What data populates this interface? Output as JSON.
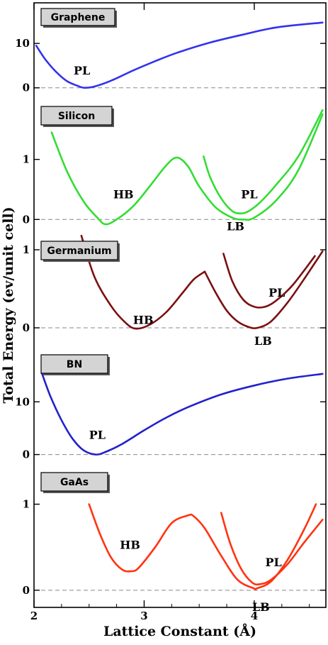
{
  "chart_data": {
    "type": "line",
    "xlabel": "Lattice Constant (Å)",
    "ylabel": "Total Energy (ev/unit cell)",
    "xlim": [
      2.0,
      4.65
    ],
    "xticks": [
      2,
      3,
      4
    ],
    "xtick_labels": [
      "2",
      "3",
      "4"
    ],
    "panels": [
      {
        "material": "Graphene",
        "yticks": [
          0,
          10
        ],
        "ytick_labels": [
          "0",
          "10"
        ],
        "ylim": [
          -1,
          18.5
        ],
        "zero_line": true,
        "series": [
          {
            "name": "PL",
            "color": "#3333ee",
            "x": [
              2.02,
              2.1,
              2.2,
              2.3,
              2.4,
              2.46,
              2.55,
              2.7,
              2.9,
              3.1,
              3.3,
              3.6,
              3.9,
              4.2,
              4.62
            ],
            "y": [
              9.5,
              6.5,
              3.6,
              1.5,
              0.4,
              0.0,
              0.3,
              1.6,
              3.9,
              6.0,
              7.9,
              10.2,
              12.0,
              13.6,
              14.7
            ]
          }
        ],
        "annotations": [
          {
            "text": "PL",
            "x": 2.36,
            "y": 3.0
          }
        ]
      },
      {
        "material": "Silicon",
        "yticks": [
          0,
          1
        ],
        "ytick_labels": [
          "0",
          "1"
        ],
        "ylim": [
          -0.15,
          2.0
        ],
        "zero_line": true,
        "series": [
          {
            "name": "HB",
            "color": "#33dd33",
            "x": [
              2.16,
              2.3,
              2.45,
              2.58,
              2.65,
              2.75,
              2.9,
              3.05,
              3.2,
              3.3,
              3.4,
              3.5,
              3.65,
              3.8,
              3.9,
              4.0,
              4.2,
              4.4,
              4.62
            ],
            "y": [
              1.45,
              0.8,
              0.3,
              0.02,
              -0.08,
              0.0,
              0.22,
              0.55,
              0.9,
              1.03,
              0.88,
              0.55,
              0.2,
              0.03,
              0.0,
              0.03,
              0.32,
              0.82,
              1.75
            ]
          },
          {
            "name": "PL",
            "color": "#33dd33",
            "x": [
              3.54,
              3.6,
              3.7,
              3.8,
              3.88,
              3.95,
              4.05,
              4.2,
              4.4,
              4.62
            ],
            "y": [
              1.05,
              0.7,
              0.35,
              0.14,
              0.1,
              0.14,
              0.28,
              0.58,
              1.05,
              1.82
            ]
          }
        ],
        "annotations": [
          {
            "text": "HB",
            "x": 2.72,
            "y": 0.35
          },
          {
            "text": "PL",
            "x": 3.88,
            "y": 0.35
          },
          {
            "text": "LB",
            "x": 3.75,
            "y": -0.18
          }
        ]
      },
      {
        "material": "Germanium",
        "yticks": [
          0,
          1
        ],
        "ytick_labels": [
          "0",
          "1"
        ],
        "ylim": [
          -0.2,
          1.2
        ],
        "zero_line": true,
        "series": [
          {
            "name": "HB",
            "color": "#7a1010",
            "x": [
              2.43,
              2.55,
              2.7,
              2.82,
              2.92,
              3.05,
              3.2,
              3.35,
              3.45,
              3.55
            ],
            "y": [
              1.18,
              0.65,
              0.28,
              0.08,
              -0.01,
              0.04,
              0.2,
              0.45,
              0.62,
              0.72
            ]
          },
          {
            "name": "LB",
            "color": "#7a1010",
            "x": [
              3.55,
              3.65,
              3.75,
              3.85,
              3.95,
              4.03,
              4.15,
              4.3,
              4.45,
              4.62
            ],
            "y": [
              0.72,
              0.45,
              0.22,
              0.08,
              0.01,
              0.0,
              0.08,
              0.32,
              0.62,
              0.98
            ]
          },
          {
            "name": "PL",
            "color": "#7a1010",
            "x": [
              3.72,
              3.8,
              3.9,
              4.0,
              4.1,
              4.2,
              4.35,
              4.55
            ],
            "y": [
              0.95,
              0.6,
              0.36,
              0.27,
              0.27,
              0.35,
              0.55,
              0.92
            ]
          }
        ],
        "annotations": [
          {
            "text": "HB",
            "x": 2.9,
            "y": 0.05
          },
          {
            "text": "PL",
            "x": 4.13,
            "y": 0.4
          },
          {
            "text": "LB",
            "x": 4.0,
            "y": -0.22
          }
        ]
      },
      {
        "material": "BN",
        "yticks": [
          0,
          10
        ],
        "ytick_labels": [
          "0",
          "10"
        ],
        "ylim": [
          -1,
          20
        ],
        "zero_line": true,
        "series": [
          {
            "name": "PL",
            "color": "#2222cc",
            "x": [
              2.07,
              2.15,
              2.25,
              2.35,
              2.45,
              2.56,
              2.65,
              2.8,
              3.0,
              3.2,
              3.4,
              3.7,
              4.0,
              4.3,
              4.62
            ],
            "y": [
              15.5,
              11.0,
              6.5,
              3.0,
              0.8,
              0.0,
              0.5,
              2.0,
              4.6,
              7.0,
              9.0,
              11.4,
              13.1,
              14.4,
              15.3
            ]
          }
        ],
        "annotations": [
          {
            "text": "PL",
            "x": 2.5,
            "y": 3.0
          }
        ]
      },
      {
        "material": "GaAs",
        "yticks": [
          0,
          1
        ],
        "ytick_labels": [
          "0",
          "1"
        ],
        "ylim": [
          -0.15,
          1.45
        ],
        "zero_line": true,
        "series": [
          {
            "name": "HB",
            "color": "#ff3311",
            "x": [
              2.5,
              2.6,
              2.7,
              2.8,
              2.88,
              2.95,
              3.1,
              3.25,
              3.4,
              3.45,
              3.55,
              3.7,
              3.85,
              4.0,
              4.02,
              4.15,
              4.3,
              4.45,
              4.56
            ],
            "y": [
              1.0,
              0.65,
              0.38,
              0.24,
              0.22,
              0.26,
              0.5,
              0.78,
              0.87,
              0.86,
              0.72,
              0.4,
              0.12,
              0.02,
              0.02,
              0.1,
              0.35,
              0.7,
              1.0
            ]
          },
          {
            "name": "PL",
            "color": "#ff3311",
            "x": [
              3.7,
              3.78,
              3.88,
              3.98,
              4.05,
              4.15,
              4.3,
              4.45,
              4.62
            ],
            "y": [
              0.9,
              0.55,
              0.25,
              0.09,
              0.07,
              0.12,
              0.3,
              0.55,
              0.82
            ]
          }
        ],
        "annotations": [
          {
            "text": "HB",
            "x": 2.78,
            "y": 0.48
          },
          {
            "text": "PL",
            "x": 4.1,
            "y": 0.28
          },
          {
            "text": "LB",
            "x": 3.98,
            "y": -0.24
          }
        ]
      }
    ]
  }
}
